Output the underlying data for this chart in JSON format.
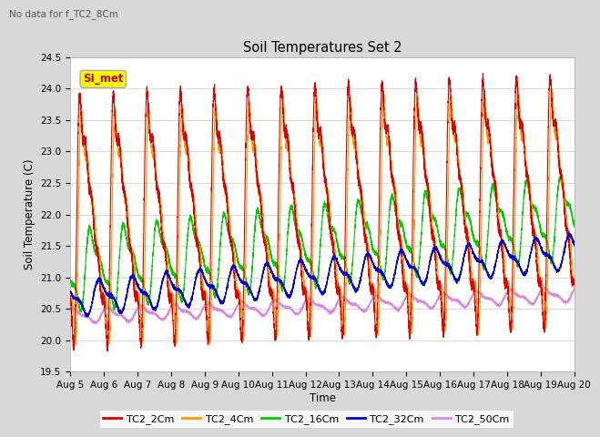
{
  "title": "Soil Temperatures Set 2",
  "ylabel": "Soil Temperature (C)",
  "xlabel": "Time",
  "note": "No data for f_TC2_8Cm",
  "annotation": "SI_met",
  "ylim": [
    19.5,
    24.5
  ],
  "yticks": [
    19.5,
    20.0,
    20.5,
    21.0,
    21.5,
    22.0,
    22.5,
    23.0,
    23.5,
    24.0,
    24.5
  ],
  "xtick_labels": [
    "Aug 5",
    "Aug 6",
    "Aug 7",
    "Aug 8",
    "Aug 9",
    "Aug 10",
    "Aug 11",
    "Aug 12",
    "Aug 13",
    "Aug 14",
    "Aug 15",
    "Aug 16",
    "Aug 17",
    "Aug 18",
    "Aug 19",
    "Aug 20"
  ],
  "colors": {
    "TC2_2Cm": "#dd0000",
    "TC2_4Cm": "#ff9900",
    "TC2_16Cm": "#00cc00",
    "TC2_32Cm": "#0000cc",
    "TC2_50Cm": "#dd88dd"
  },
  "bg_color": "#d8d8d8",
  "plot_bg": "#ffffff",
  "legend_labels": [
    "TC2_2Cm",
    "TC2_4Cm",
    "TC2_16Cm",
    "TC2_32Cm",
    "TC2_50Cm"
  ]
}
